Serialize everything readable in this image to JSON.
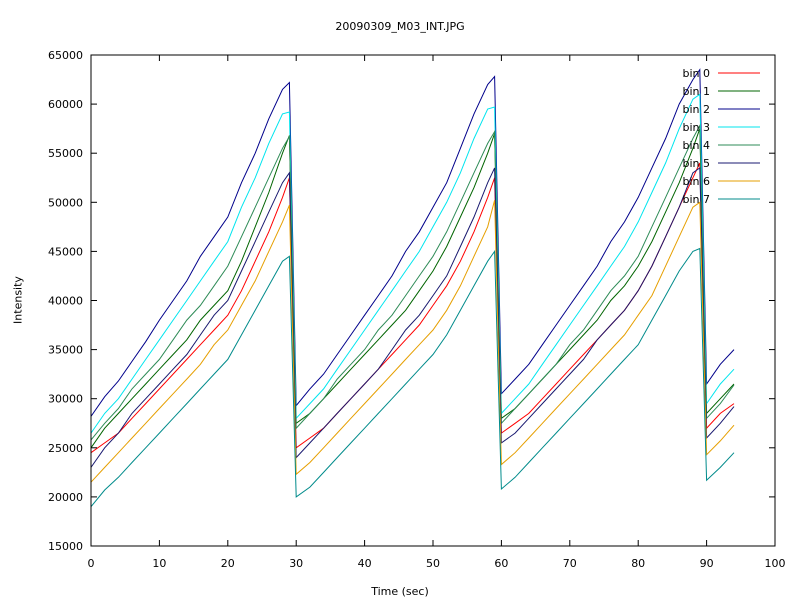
{
  "chart_data": {
    "type": "line",
    "title": "20090309_M03_INT.JPG",
    "xlabel": "Time (sec)",
    "ylabel": "Intensity",
    "xlim": [
      0,
      100
    ],
    "ylim": [
      15000,
      65000
    ],
    "xticks": [
      0,
      10,
      20,
      30,
      40,
      50,
      60,
      70,
      80,
      90,
      100
    ],
    "yticks": [
      15000,
      20000,
      25000,
      30000,
      35000,
      40000,
      45000,
      50000,
      55000,
      60000,
      65000
    ],
    "grid": false,
    "legend_position": "top-right",
    "x": [
      0,
      2,
      4,
      6,
      8,
      10,
      12,
      14,
      16,
      18,
      20,
      22,
      24,
      26,
      28,
      29,
      30,
      32,
      34,
      36,
      38,
      40,
      42,
      44,
      46,
      48,
      50,
      52,
      54,
      56,
      58,
      59,
      60,
      62,
      64,
      66,
      68,
      70,
      72,
      74,
      76,
      78,
      80,
      82,
      84,
      86,
      88,
      89,
      90,
      92,
      94
    ],
    "series": [
      {
        "name": "bin 0",
        "color": "#ff0000",
        "values": [
          24500,
          25500,
          26500,
          28000,
          29500,
          31000,
          32500,
          34000,
          35500,
          37000,
          38500,
          41000,
          44000,
          47000,
          50500,
          52500,
          25000,
          26000,
          27000,
          28500,
          30000,
          31500,
          33000,
          34500,
          36000,
          37500,
          39500,
          41500,
          44000,
          47000,
          50500,
          52500,
          26500,
          27500,
          28500,
          30000,
          31500,
          33000,
          34500,
          36000,
          37500,
          39000,
          41000,
          43500,
          46500,
          49500,
          52500,
          54000,
          27000,
          28500,
          29500
        ]
      },
      {
        "name": "bin 1",
        "color": "#006400",
        "values": [
          25000,
          27000,
          28500,
          30000,
          31500,
          33000,
          34500,
          36000,
          38000,
          39500,
          41000,
          44000,
          47500,
          51000,
          55000,
          56800,
          27500,
          28500,
          30000,
          31500,
          33000,
          34500,
          36000,
          37500,
          39000,
          41000,
          43000,
          45500,
          48500,
          51500,
          55000,
          57000,
          28000,
          29000,
          30500,
          32000,
          33500,
          35000,
          36500,
          38000,
          40000,
          41500,
          43500,
          46000,
          49000,
          52000,
          55500,
          57500,
          28500,
          30000,
          31500
        ]
      },
      {
        "name": "bin 2",
        "color": "#00008b",
        "values": [
          28200,
          30200,
          31800,
          33800,
          35800,
          38000,
          40000,
          42000,
          44500,
          46500,
          48500,
          52000,
          55000,
          58500,
          61500,
          62200,
          29300,
          31000,
          32500,
          34500,
          36500,
          38500,
          40500,
          42500,
          45000,
          47000,
          49500,
          52000,
          55500,
          59000,
          62000,
          62800,
          30500,
          32000,
          33500,
          35500,
          37500,
          39500,
          41500,
          43500,
          46000,
          48000,
          50500,
          53500,
          56500,
          60000,
          62500,
          63500,
          31500,
          33500,
          35000
        ]
      },
      {
        "name": "bin 3",
        "color": "#00e5ee",
        "values": [
          26500,
          28500,
          30000,
          32000,
          34000,
          36000,
          38000,
          40000,
          42000,
          44000,
          46000,
          49500,
          52500,
          56000,
          59000,
          59200,
          28000,
          29500,
          31000,
          33000,
          35000,
          37000,
          39000,
          41000,
          43000,
          45000,
          47500,
          50000,
          53000,
          56500,
          59500,
          59700,
          28500,
          30000,
          31500,
          33500,
          35500,
          37500,
          39500,
          41500,
          43500,
          45500,
          48000,
          51000,
          54000,
          57500,
          60500,
          61000,
          29500,
          31500,
          33000
        ]
      },
      {
        "name": "bin 4",
        "color": "#2e8b57",
        "values": [
          25800,
          27500,
          29000,
          31000,
          32500,
          34000,
          36000,
          38000,
          39500,
          41500,
          43500,
          46500,
          49500,
          52500,
          55500,
          56700,
          27000,
          28500,
          30000,
          32000,
          33500,
          35000,
          37000,
          38500,
          40500,
          42500,
          44500,
          47000,
          50000,
          53000,
          56000,
          57200,
          27500,
          29000,
          30500,
          32000,
          33500,
          35500,
          37000,
          39000,
          41000,
          42500,
          44500,
          47500,
          50500,
          53500,
          56500,
          57800,
          28000,
          29500,
          31400
        ]
      },
      {
        "name": "bin 5",
        "color": "#191970",
        "values": [
          23000,
          25000,
          26500,
          28500,
          30000,
          31500,
          33000,
          34500,
          36500,
          38500,
          40000,
          43000,
          46000,
          49000,
          52000,
          53000,
          24000,
          25500,
          27000,
          28500,
          30000,
          31500,
          33000,
          35000,
          37000,
          38500,
          40500,
          42500,
          45500,
          48500,
          52000,
          53500,
          25500,
          26500,
          28000,
          29500,
          31000,
          32500,
          34000,
          36000,
          37500,
          39000,
          41000,
          43500,
          46500,
          49500,
          53000,
          53500,
          26000,
          27500,
          29200
        ]
      },
      {
        "name": "bin 6",
        "color": "#e69f00",
        "values": [
          21500,
          23000,
          24500,
          26000,
          27500,
          29000,
          30500,
          32000,
          33500,
          35500,
          37000,
          39500,
          42000,
          45000,
          48000,
          49700,
          22300,
          23500,
          25000,
          26500,
          28000,
          29500,
          31000,
          32500,
          34000,
          35500,
          37000,
          39000,
          41500,
          44500,
          47500,
          50200,
          23300,
          24500,
          26000,
          27500,
          29000,
          30500,
          32000,
          33500,
          35000,
          36500,
          38500,
          40500,
          43500,
          46500,
          49500,
          50000,
          24300,
          25700,
          27300
        ]
      },
      {
        "name": "bin 7",
        "color": "#008b8b",
        "values": [
          19000,
          20700,
          22000,
          23500,
          25000,
          26500,
          28000,
          29500,
          31000,
          32500,
          34000,
          36500,
          39000,
          41500,
          44000,
          44500,
          20000,
          21000,
          22500,
          24000,
          25500,
          27000,
          28500,
          30000,
          31500,
          33000,
          34500,
          36500,
          39000,
          41500,
          44000,
          45000,
          20800,
          22000,
          23500,
          25000,
          26500,
          28000,
          29500,
          31000,
          32500,
          34000,
          35500,
          38000,
          40500,
          43000,
          45000,
          45300,
          21700,
          23000,
          24500
        ]
      }
    ]
  }
}
